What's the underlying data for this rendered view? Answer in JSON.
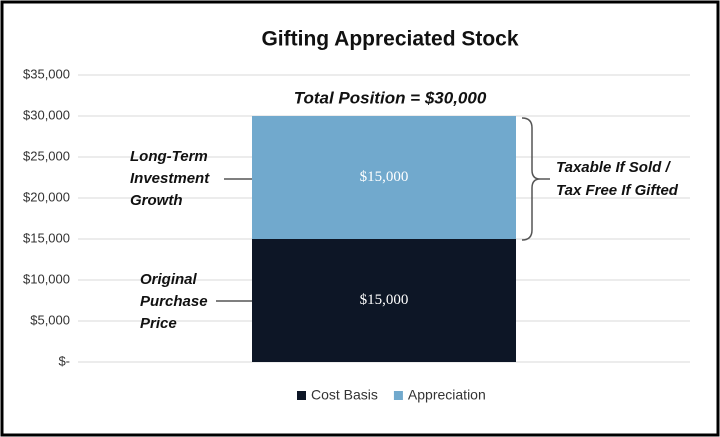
{
  "chart_data": {
    "type": "stacked-bar",
    "title": "Gifting Appreciated Stock",
    "categories": [
      null
    ],
    "series": [
      {
        "name": "Cost Basis",
        "color": "#0d1626",
        "values": [
          15000
        ],
        "value_labels": [
          "$15,000"
        ]
      },
      {
        "name": "Appreciation",
        "color": "#71a9cd",
        "values": [
          15000
        ],
        "value_labels": [
          "$15,000"
        ]
      }
    ],
    "ylim": [
      0,
      35000
    ],
    "yticks": [
      {
        "value": 0,
        "label": "$-"
      },
      {
        "value": 5000,
        "label": "$5,000"
      },
      {
        "value": 10000,
        "label": "$10,000"
      },
      {
        "value": 15000,
        "label": "$15,000"
      },
      {
        "value": 20000,
        "label": "$20,000"
      },
      {
        "value": 25000,
        "label": "$25,000"
      },
      {
        "value": 30000,
        "label": "$30,000"
      },
      {
        "value": 35000,
        "label": "$35,000"
      }
    ],
    "grid": true,
    "legend": "bottom",
    "annotations": [
      {
        "lines": [
          "Total Position = $30,000"
        ]
      },
      {
        "lines": [
          "Long-Term",
          "Investment",
          "Growth"
        ]
      },
      {
        "lines": [
          "Original",
          "Purchase",
          "Price"
        ]
      },
      {
        "lines": [
          "Taxable If Sold /",
          "Tax Free If Gifted"
        ]
      }
    ]
  }
}
